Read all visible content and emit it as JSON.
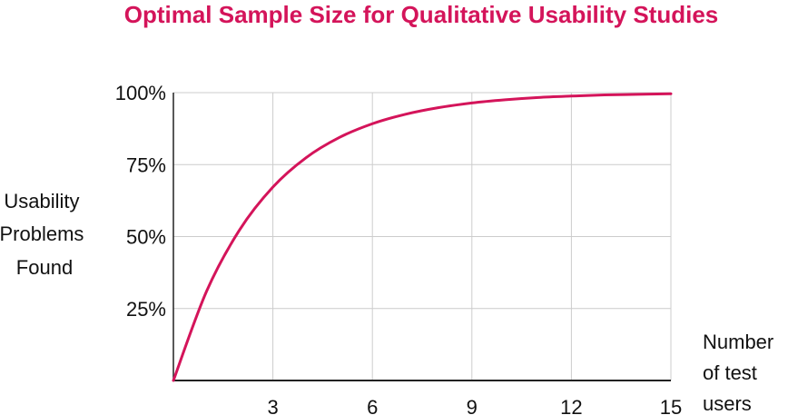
{
  "chart_data": {
    "type": "line",
    "title": "Optimal Sample Size for Qualitative Usability Studies",
    "ylabel_lines": [
      "Usability",
      "Problems",
      "Found"
    ],
    "xlabel_lines": [
      "Number",
      "of test",
      "users"
    ],
    "x_ticks": [
      3,
      6,
      9,
      12,
      15
    ],
    "y_ticks": [
      25,
      50,
      75,
      100
    ],
    "y_tick_labels": [
      "25%",
      "50%",
      "75%",
      "100%"
    ],
    "xlim": [
      0,
      15
    ],
    "ylim": [
      0,
      100
    ],
    "grid": true,
    "series": [
      {
        "x": [
          0,
          1,
          2,
          3,
          4,
          5,
          6,
          7,
          8,
          9,
          10,
          11,
          12,
          13,
          14,
          15
        ],
        "y": [
          0,
          31,
          52.4,
          67.2,
          77.4,
          84.4,
          89.2,
          92.5,
          94.8,
          96.4,
          97.5,
          98.3,
          98.8,
          99.2,
          99.4,
          99.6
        ]
      }
    ],
    "colors": {
      "accent": "#d4145a",
      "grid": "#cccccc",
      "axis": "#222222"
    }
  }
}
